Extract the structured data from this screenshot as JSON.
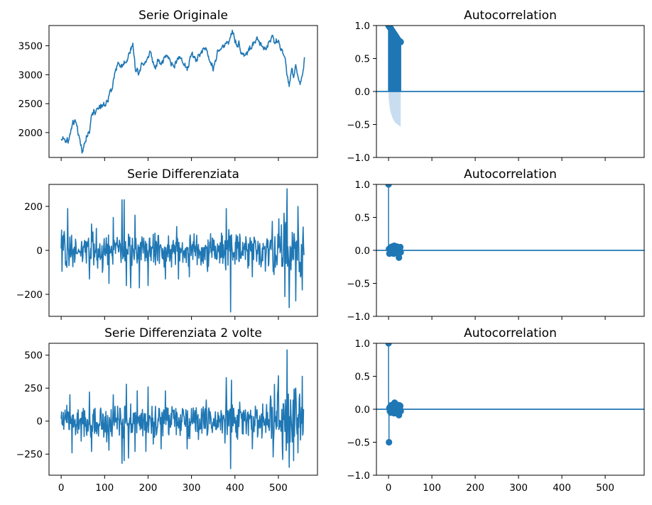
{
  "figure": {
    "background": "#ffffff",
    "line_color": "#1f77b4",
    "band_color": "#c6dbef"
  },
  "chart_data": [
    {
      "type": "line",
      "title": "Serie Originale",
      "xlim": [
        -28,
        590
      ],
      "ylim": [
        1570,
        3850
      ],
      "yticks": [
        2000,
        2500,
        3000,
        3500
      ],
      "xticks": [
        0,
        100,
        200,
        300,
        400,
        500
      ],
      "show_xtick_labels": false,
      "n_points": 561,
      "anchors": [
        [
          0,
          1880
        ],
        [
          5,
          1900
        ],
        [
          10,
          1870
        ],
        [
          18,
          1880
        ],
        [
          25,
          2100
        ],
        [
          30,
          2160
        ],
        [
          35,
          2150
        ],
        [
          40,
          1990
        ],
        [
          45,
          1780
        ],
        [
          50,
          1680
        ],
        [
          55,
          1900
        ],
        [
          60,
          1950
        ],
        [
          65,
          2000
        ],
        [
          70,
          2250
        ],
        [
          75,
          2400
        ],
        [
          80,
          2380
        ],
        [
          90,
          2420
        ],
        [
          100,
          2480
        ],
        [
          110,
          2600
        ],
        [
          118,
          2800
        ],
        [
          125,
          3100
        ],
        [
          132,
          3200
        ],
        [
          140,
          3150
        ],
        [
          150,
          3250
        ],
        [
          160,
          3450
        ],
        [
          165,
          3520
        ],
        [
          170,
          3150
        ],
        [
          178,
          3050
        ],
        [
          185,
          3200
        ],
        [
          195,
          3250
        ],
        [
          205,
          3400
        ],
        [
          215,
          3150
        ],
        [
          222,
          3250
        ],
        [
          230,
          3200
        ],
        [
          240,
          3320
        ],
        [
          250,
          3250
        ],
        [
          260,
          3150
        ],
        [
          270,
          3300
        ],
        [
          280,
          3250
        ],
        [
          290,
          3100
        ],
        [
          300,
          3350
        ],
        [
          310,
          3250
        ],
        [
          320,
          3350
        ],
        [
          330,
          3500
        ],
        [
          340,
          3300
        ],
        [
          350,
          3100
        ],
        [
          360,
          3400
        ],
        [
          370,
          3450
        ],
        [
          380,
          3550
        ],
        [
          390,
          3650
        ],
        [
          395,
          3750
        ],
        [
          400,
          3600
        ],
        [
          410,
          3500
        ],
        [
          420,
          3350
        ],
        [
          430,
          3400
        ],
        [
          440,
          3500
        ],
        [
          450,
          3600
        ],
        [
          460,
          3500
        ],
        [
          470,
          3450
        ],
        [
          480,
          3600
        ],
        [
          485,
          3700
        ],
        [
          490,
          3600
        ],
        [
          500,
          3550
        ],
        [
          510,
          3400
        ],
        [
          515,
          3250
        ],
        [
          520,
          3000
        ],
        [
          525,
          2820
        ],
        [
          530,
          3050
        ],
        [
          535,
          3000
        ],
        [
          540,
          3100
        ],
        [
          545,
          3000
        ],
        [
          550,
          2850
        ],
        [
          555,
          2950
        ],
        [
          560,
          3280
        ]
      ]
    },
    {
      "type": "acf",
      "title": "Autocorrelation",
      "xlim": [
        -28,
        590
      ],
      "ylim": [
        -1.0,
        1.0
      ],
      "yticks": [
        -1.0,
        -0.5,
        0.0,
        0.5,
        1.0
      ],
      "ytick_labels": [
        "−1.0",
        "−0.5",
        "0.0",
        "0.5",
        "1.0"
      ],
      "xticks": [
        0,
        100,
        200,
        300,
        400,
        500
      ],
      "show_xtick_labels": false,
      "lags": [
        0,
        1,
        2,
        3,
        4,
        5,
        6,
        7,
        8,
        9,
        10,
        11,
        12,
        13,
        14,
        15,
        16,
        17,
        18,
        19,
        20,
        21,
        22,
        23,
        24,
        25,
        26,
        27,
        28
      ],
      "values": [
        1.0,
        0.99,
        0.98,
        0.97,
        0.965,
        0.955,
        0.945,
        0.935,
        0.925,
        0.915,
        0.905,
        0.895,
        0.885,
        0.875,
        0.865,
        0.855,
        0.845,
        0.835,
        0.825,
        0.815,
        0.805,
        0.795,
        0.785,
        0.775,
        0.77,
        0.765,
        0.76,
        0.755,
        0.75
      ],
      "conf_band_lower": [
        -0.09,
        -0.15,
        -0.21,
        -0.26,
        -0.29,
        -0.32,
        -0.34,
        -0.36,
        -0.38,
        -0.4,
        -0.41,
        -0.43,
        -0.44,
        -0.45,
        -0.46,
        -0.47,
        -0.475,
        -0.48,
        -0.485,
        -0.49,
        -0.495,
        -0.5,
        -0.505,
        -0.51,
        -0.515,
        -0.52,
        -0.525,
        -0.53,
        -0.535
      ]
    },
    {
      "type": "line",
      "title": "Serie Differenziata",
      "xlim": [
        -28,
        590
      ],
      "ylim": [
        -300,
        300
      ],
      "yticks": [
        -200,
        0,
        200
      ],
      "ytick_labels": [
        "−200",
        "0",
        "200"
      ],
      "xticks": [
        0,
        100,
        200,
        300,
        400,
        500
      ],
      "show_xtick_labels": false,
      "n_points": 560,
      "spikes": [
        [
          15,
          190
        ],
        [
          65,
          -130
        ],
        [
          70,
          120
        ],
        [
          95,
          -100
        ],
        [
          110,
          -150
        ],
        [
          120,
          150
        ],
        [
          140,
          230
        ],
        [
          145,
          230
        ],
        [
          150,
          -160
        ],
        [
          160,
          -170
        ],
        [
          170,
          160
        ],
        [
          180,
          -170
        ],
        [
          200,
          -160
        ],
        [
          240,
          -130
        ],
        [
          270,
          -130
        ],
        [
          295,
          -120
        ],
        [
          390,
          -280
        ],
        [
          380,
          190
        ],
        [
          440,
          -120
        ],
        [
          490,
          -110
        ],
        [
          515,
          -210
        ],
        [
          520,
          280
        ],
        [
          525,
          -260
        ],
        [
          540,
          -230
        ],
        [
          545,
          200
        ],
        [
          555,
          -180
        ]
      ]
    },
    {
      "type": "acf",
      "title": "Autocorrelation",
      "xlim": [
        -28,
        590
      ],
      "ylim": [
        -1.0,
        1.0
      ],
      "yticks": [
        -1.0,
        -0.5,
        0.0,
        0.5,
        1.0
      ],
      "ytick_labels": [
        "−1.0",
        "−0.5",
        "0.0",
        "0.5",
        "1.0"
      ],
      "xticks": [
        0,
        100,
        200,
        300,
        400,
        500
      ],
      "show_xtick_labels": false,
      "lags": [
        0,
        1,
        2,
        3,
        4,
        5,
        6,
        7,
        8,
        9,
        10,
        11,
        12,
        13,
        14,
        15,
        16,
        17,
        18,
        19,
        20,
        21,
        22,
        23,
        24,
        25,
        26,
        27,
        28
      ],
      "values": [
        1.0,
        0.02,
        -0.05,
        0.03,
        0.04,
        -0.03,
        0.05,
        -0.04,
        0.02,
        0.06,
        -0.02,
        0.03,
        -0.05,
        0.07,
        0.05,
        -0.03,
        0.04,
        -0.02,
        0.06,
        0.02,
        -0.04,
        0.03,
        0.05,
        -0.06,
        -0.11,
        0.04,
        0.02,
        0.05,
        -0.03
      ],
      "conf_band_lower": [
        -0.09,
        -0.085,
        -0.085,
        -0.085,
        -0.085,
        -0.086,
        -0.086,
        -0.086,
        -0.087,
        -0.087,
        -0.087,
        -0.088,
        -0.088,
        -0.088,
        -0.089,
        -0.089,
        -0.089,
        -0.09,
        -0.09,
        -0.09,
        -0.091,
        -0.091,
        -0.091,
        -0.092,
        -0.092,
        -0.093,
        -0.093,
        -0.093,
        -0.094
      ]
    },
    {
      "type": "line",
      "title": "Serie Differenziata 2 volte",
      "xlim": [
        -28,
        590
      ],
      "ylim": [
        -410,
        590
      ],
      "yticks": [
        -250,
        0,
        250,
        500
      ],
      "ytick_labels": [
        "−250",
        "0",
        "250",
        "500"
      ],
      "xticks": [
        0,
        100,
        200,
        300,
        400,
        500
      ],
      "show_xtick_labels": true,
      "n_points": 559,
      "spikes": [
        [
          20,
          200
        ],
        [
          25,
          -240
        ],
        [
          65,
          220
        ],
        [
          70,
          -230
        ],
        [
          110,
          -220
        ],
        [
          120,
          200
        ],
        [
          140,
          300
        ],
        [
          140,
          -320
        ],
        [
          145,
          -300
        ],
        [
          150,
          280
        ],
        [
          155,
          -280
        ],
        [
          170,
          -230
        ],
        [
          175,
          230
        ],
        [
          195,
          -230
        ],
        [
          200,
          260
        ],
        [
          230,
          -210
        ],
        [
          240,
          230
        ],
        [
          290,
          -210
        ],
        [
          380,
          330
        ],
        [
          390,
          -360
        ],
        [
          392,
          310
        ],
        [
          440,
          -210
        ],
        [
          510,
          -290
        ],
        [
          520,
          540
        ],
        [
          525,
          -350
        ],
        [
          535,
          -300
        ],
        [
          540,
          250
        ],
        [
          545,
          -240
        ],
        [
          555,
          340
        ],
        [
          560,
          -240
        ]
      ]
    },
    {
      "type": "acf",
      "title": "Autocorrelation",
      "xlim": [
        -28,
        590
      ],
      "ylim": [
        -1.0,
        1.0
      ],
      "yticks": [
        -1.0,
        -0.5,
        0.0,
        0.5,
        1.0
      ],
      "ytick_labels": [
        "−1.0",
        "−0.5",
        "0.0",
        "0.5",
        "1.0"
      ],
      "xticks": [
        0,
        100,
        200,
        300,
        400,
        500
      ],
      "show_xtick_labels": true,
      "lags": [
        0,
        1,
        2,
        3,
        4,
        5,
        6,
        7,
        8,
        9,
        10,
        11,
        12,
        13,
        14,
        15,
        16,
        17,
        18,
        19,
        20,
        21,
        22,
        23,
        24,
        25,
        26,
        27,
        28
      ],
      "values": [
        1.0,
        -0.5,
        0.02,
        -0.03,
        0.04,
        -0.05,
        0.06,
        -0.02,
        0.03,
        0.05,
        -0.04,
        0.02,
        0.08,
        -0.06,
        0.1,
        -0.03,
        0.05,
        0.02,
        -0.04,
        0.07,
        -0.05,
        0.03,
        0.04,
        -0.02,
        -0.09,
        0.06,
        0.02,
        0.05,
        -0.03
      ],
      "conf_band_lower": [
        -0.09,
        -0.085,
        -0.105,
        -0.105,
        -0.105,
        -0.106,
        -0.106,
        -0.106,
        -0.107,
        -0.107,
        -0.107,
        -0.108,
        -0.108,
        -0.108,
        -0.109,
        -0.109,
        -0.109,
        -0.11,
        -0.11,
        -0.11,
        -0.111,
        -0.111,
        -0.111,
        -0.112,
        -0.112,
        -0.113,
        -0.113,
        -0.113,
        -0.114
      ]
    }
  ]
}
